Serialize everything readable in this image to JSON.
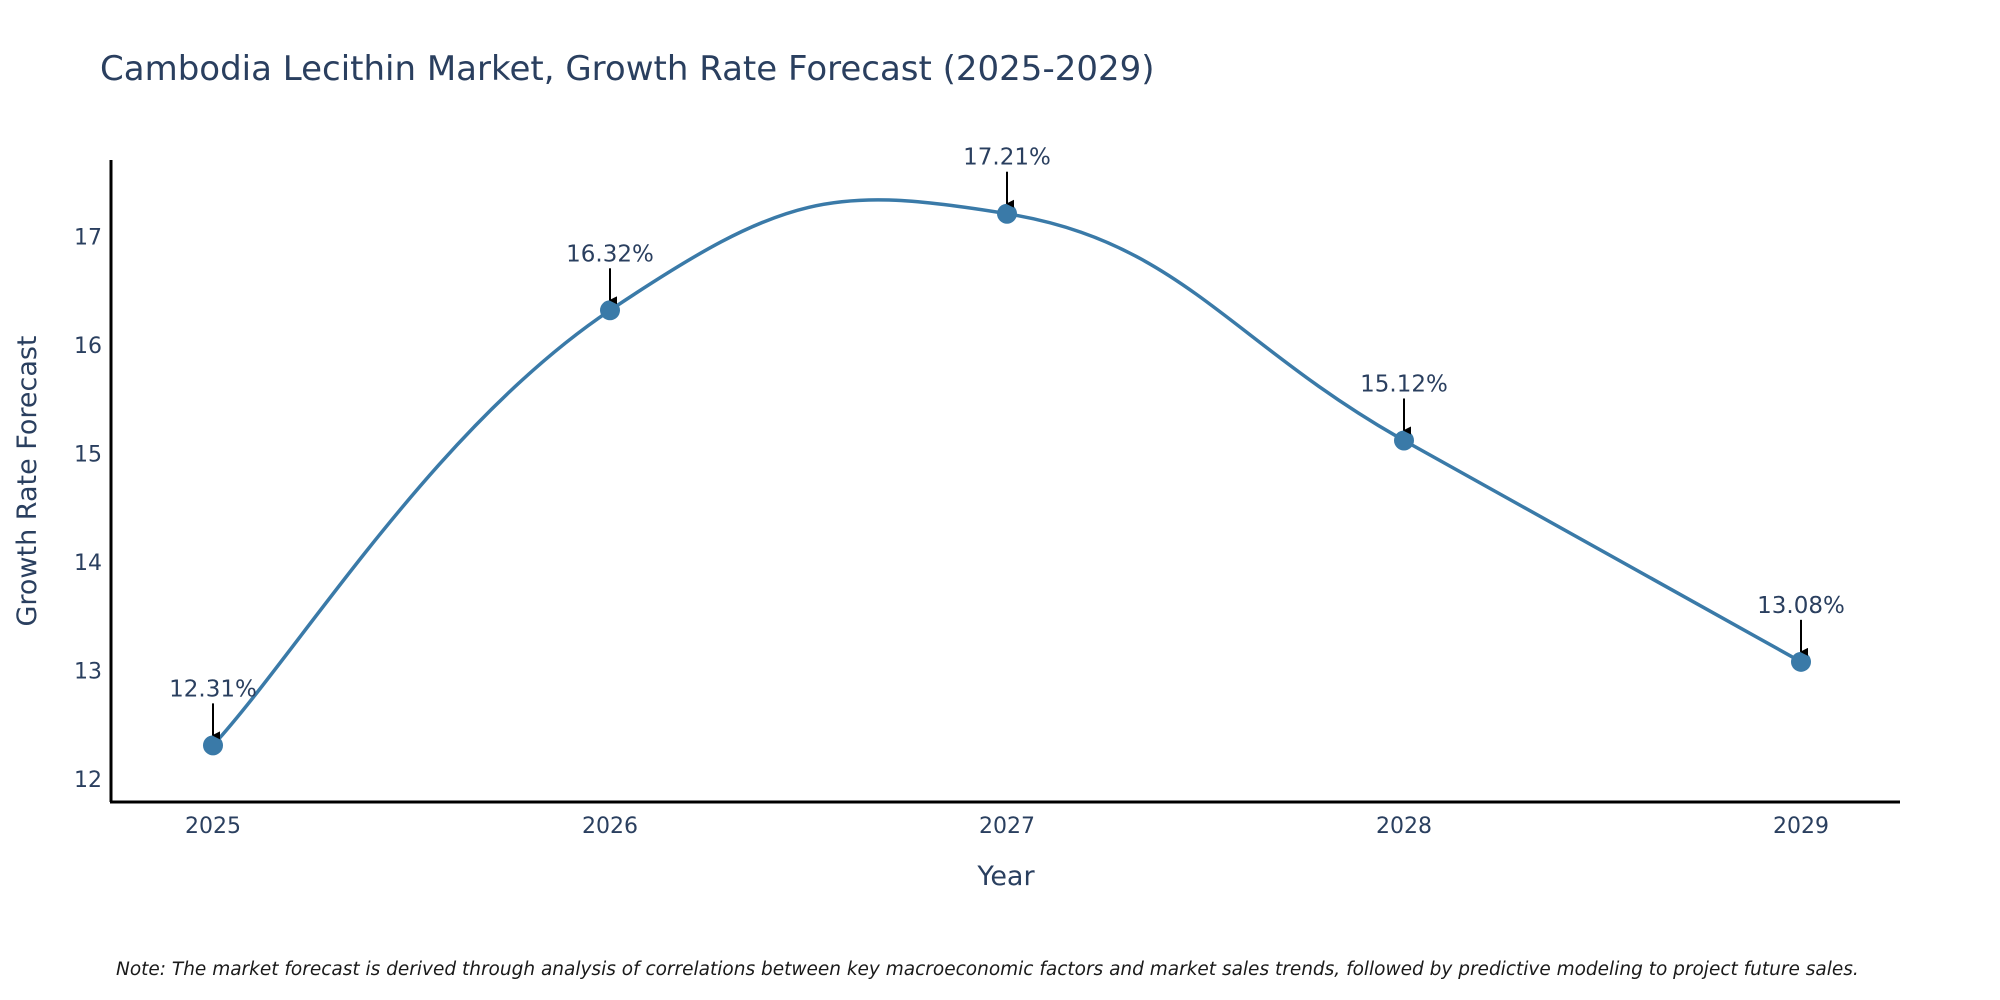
{
  "chart_data": {
    "type": "line",
    "title": "Cambodia Lecithin Market, Growth Rate Forecast (2025-2029)",
    "xlabel": "Year",
    "ylabel": "Growth Rate Forecast",
    "categories": [
      "2025",
      "2026",
      "2027",
      "2028",
      "2029"
    ],
    "series": [
      {
        "name": "Growth Rate Forecast",
        "values": [
          12.31,
          16.32,
          17.21,
          15.12,
          13.08
        ]
      }
    ],
    "data_labels": [
      "12.31%",
      "16.32%",
      "17.21%",
      "15.12%",
      "13.08%"
    ],
    "y_ticks": [
      "12",
      "13",
      "14",
      "15",
      "16",
      "17"
    ],
    "ylim": [
      11.8,
      17.7
    ],
    "grid": false,
    "line_shape": "spline",
    "colors": {
      "line": "#3a7aa8",
      "marker": "#3a7aa8",
      "arrow": "#000000",
      "axis": "#000000"
    }
  },
  "note": "Note: The market forecast is derived through analysis of correlations between key macroeconomic factors and market sales trends, followed by predictive modeling to project future sales."
}
